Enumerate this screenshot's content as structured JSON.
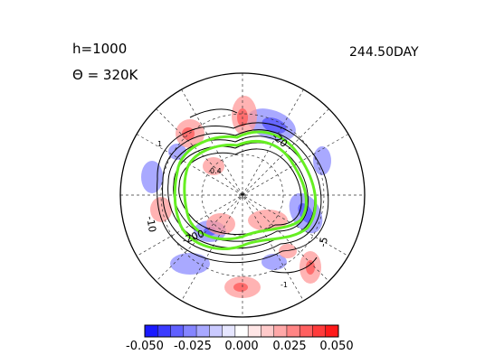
{
  "header": {
    "h_text": "h=1000",
    "theta_text": "Θ = 320K",
    "time_text": "244.50DAY"
  },
  "contour_labels": [
    "-20",
    "-10",
    "-200",
    "-5",
    "1",
    "-1",
    "0.4"
  ],
  "colorbar": {
    "tick_labels": [
      "-0.050",
      "-0.025",
      "0.000",
      "0.025",
      "0.050"
    ],
    "min": -0.05,
    "max": 0.05,
    "colors": [
      "#1a1aff",
      "#3b3bff",
      "#6060ff",
      "#8585ff",
      "#a8a8ff",
      "#cacaff",
      "#e6e6ff",
      "#ffffff",
      "#ffe6e6",
      "#ffcaca",
      "#ffa8a8",
      "#ff8585",
      "#ff6060",
      "#ff3b3b",
      "#ff1a1a"
    ]
  },
  "colors": {
    "positive": "#ff6a6a",
    "negative": "#6a6aff",
    "contour_green": "#66ee22",
    "contour_black": "#000000"
  }
}
